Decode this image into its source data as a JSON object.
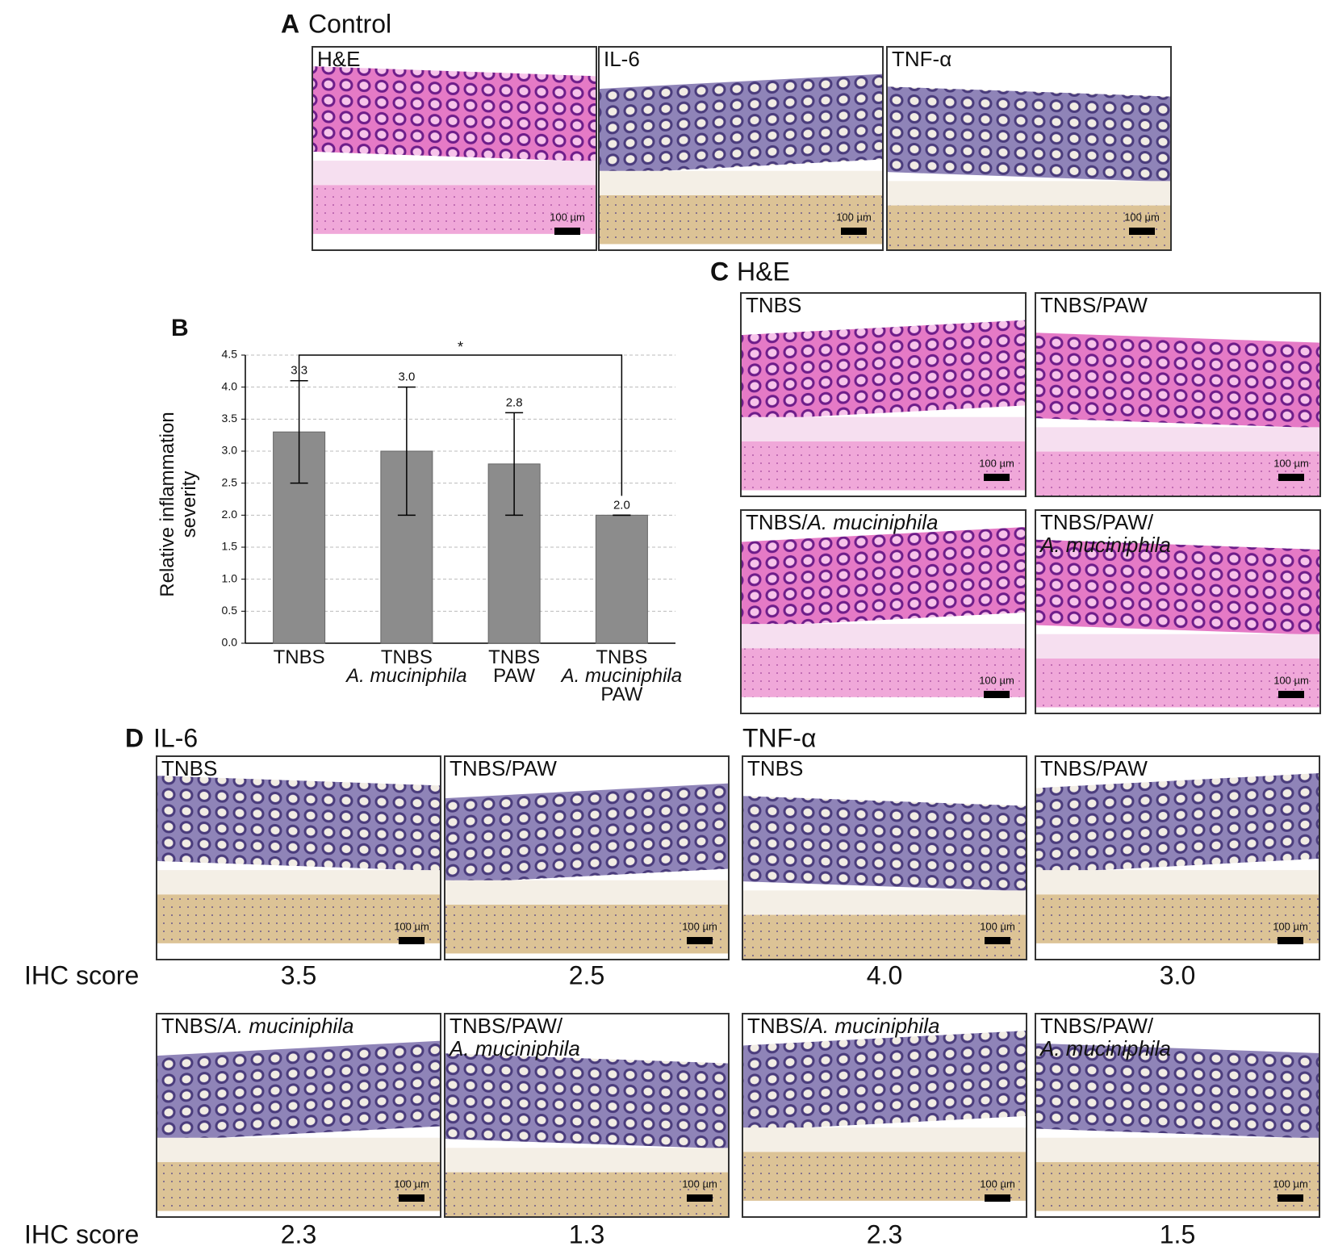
{
  "panel_a": {
    "label": "A",
    "title": "Control",
    "images": [
      {
        "label": [
          [
            {
              "text": "H&E"
            }
          ]
        ],
        "scale_bar": "100 µm",
        "stain": "he"
      },
      {
        "label": [
          [
            {
              "text": "IL-6"
            }
          ]
        ],
        "scale_bar": "100 µm",
        "stain": "ihc"
      },
      {
        "label": [
          [
            {
              "text": "TNF-α"
            }
          ]
        ],
        "scale_bar": "100 µm",
        "stain": "ihc"
      }
    ]
  },
  "chart_data": {
    "type": "bar",
    "panel_label": "B",
    "ylabel": [
      "Relative inflammation",
      "severity"
    ],
    "categories": [
      [
        {
          "text": "TNBS"
        }
      ],
      [
        {
          "text": "TNBS"
        },
        {
          "text": "A. muciniphila",
          "italic": true
        }
      ],
      [
        {
          "text": "TNBS"
        },
        {
          "text": "PAW"
        }
      ],
      [
        {
          "text": "TNBS"
        },
        {
          "text": "A. muciniphila",
          "italic": true
        },
        {
          "text": "PAW"
        }
      ]
    ],
    "values": [
      3.3,
      3.0,
      2.8,
      2.0
    ],
    "value_labels": [
      "3.3",
      "3.0",
      "2.8",
      "2.0"
    ],
    "errors": [
      0.8,
      1.0,
      0.8,
      0.0
    ],
    "color": "#8c8c8c",
    "ylim": [
      0,
      4.5
    ],
    "yticks": [
      {
        "value": 0,
        "label": "0.0"
      },
      0.5,
      {
        "value": 1,
        "label": "1.0"
      },
      1.5,
      {
        "value": 2,
        "label": "2.0"
      },
      2.5,
      {
        "value": 3,
        "label": "3.0"
      },
      3.5,
      {
        "value": 4,
        "label": "4.0"
      },
      4.5
    ],
    "grid": true,
    "annotations": [
      {
        "text": "*"
      }
    ]
  },
  "panel_c": {
    "label": "C",
    "title": "H&E",
    "images": [
      {
        "label": [
          [
            {
              "text": "TNBS"
            }
          ]
        ],
        "scale_bar": "100 µm",
        "stain": "he"
      },
      {
        "label": [
          [
            {
              "text": "TNBS/PAW"
            }
          ]
        ],
        "scale_bar": "100 µm",
        "stain": "he"
      },
      {
        "label": [
          [
            {
              "text": "TNBS/"
            },
            {
              "text": "A. muciniphila",
              "italic": true
            }
          ]
        ],
        "scale_bar": "100 µm",
        "stain": "he"
      },
      {
        "label": [
          [
            {
              "text": "TNBS/PAW/"
            }
          ],
          [
            {
              "text": "A. muciniphila",
              "italic": true
            }
          ]
        ],
        "scale_bar": "100 µm",
        "stain": "he"
      }
    ]
  },
  "panel_d": {
    "label": "D",
    "row_label": "IHC score",
    "groups": [
      {
        "title": "IL-6",
        "images": [
          {
            "label": [
              [
                {
                  "text": "TNBS"
                }
              ]
            ],
            "scale_bar": "100 µm",
            "score": "3.5",
            "stain": "ihc"
          },
          {
            "label": [
              [
                {
                  "text": "TNBS/PAW"
                }
              ]
            ],
            "scale_bar": "100 µm",
            "score": "2.5",
            "stain": "ihc"
          },
          {
            "label": [
              [
                {
                  "text": "TNBS/"
                },
                {
                  "text": "A. muciniphila",
                  "italic": true
                }
              ]
            ],
            "scale_bar": "100 µm",
            "score": "2.3",
            "stain": "ihc"
          },
          {
            "label": [
              [
                {
                  "text": "TNBS/PAW/"
                }
              ],
              [
                {
                  "text": "A. muciniphila",
                  "italic": true
                }
              ]
            ],
            "scale_bar": "100 µm",
            "score": "1.3",
            "stain": "ihc"
          }
        ]
      },
      {
        "title": "TNF-α",
        "images": [
          {
            "label": [
              [
                {
                  "text": "TNBS"
                }
              ]
            ],
            "scale_bar": "100 µm",
            "score": "4.0",
            "stain": "ihc"
          },
          {
            "label": [
              [
                {
                  "text": "TNBS/PAW"
                }
              ]
            ],
            "scale_bar": "100 µm",
            "score": "3.0",
            "stain": "ihc"
          },
          {
            "label": [
              [
                {
                  "text": "TNBS/"
                },
                {
                  "text": "A. muciniphila",
                  "italic": true
                }
              ]
            ],
            "scale_bar": "100 µm",
            "score": "2.3",
            "stain": "ihc"
          },
          {
            "label": [
              [
                {
                  "text": "TNBS/PAW/"
                }
              ],
              [
                {
                  "text": "A. muciniphila",
                  "italic": true
                }
              ]
            ],
            "scale_bar": "100 µm",
            "score": "1.5",
            "stain": "ihc"
          }
        ]
      }
    ]
  }
}
